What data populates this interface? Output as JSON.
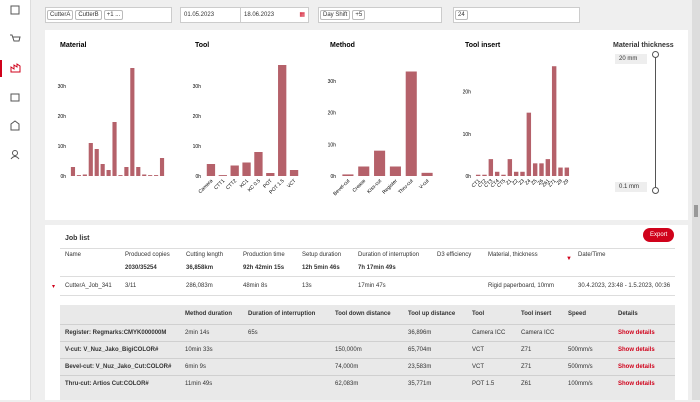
{
  "filters": {
    "machines": [
      "CutterA",
      "CutterB",
      "+1 ..."
    ],
    "date_from": "01.05.2023",
    "date_to": "18.06.2023",
    "shifts": [
      "Day Shift",
      "+5"
    ],
    "hours": [
      "24"
    ]
  },
  "chart_data": [
    {
      "type": "bar",
      "title": "Material",
      "color": "#b5616a",
      "categories": [
        null,
        null,
        null,
        null,
        null,
        null,
        null,
        null,
        null,
        null,
        null,
        null,
        null,
        null,
        null,
        null
      ],
      "values": [
        3,
        0.3,
        0.5,
        11,
        9,
        4,
        2,
        18,
        0.3,
        3,
        36,
        3,
        0.5,
        0.3,
        0.3,
        6
      ],
      "ylim": [
        0,
        38
      ],
      "yticks": [
        {
          "value": 0,
          "label": "0h"
        },
        {
          "value": 10,
          "label": "10h"
        },
        {
          "value": 20,
          "label": "20h"
        },
        {
          "value": 30,
          "label": "30h"
        }
      ]
    },
    {
      "type": "bar",
      "title": "Tool",
      "color": "#b5616a",
      "categories": [
        "Camera",
        "CTT1",
        "CTT2",
        "KC1",
        "KC 0.5",
        "POT",
        "POT 1.5",
        "VCT"
      ],
      "values": [
        4,
        0.3,
        3.5,
        4.5,
        8,
        1,
        37,
        2
      ],
      "ylim": [
        0,
        38
      ],
      "yticks": [
        {
          "value": 0,
          "label": "0h"
        },
        {
          "value": 10,
          "label": "10h"
        },
        {
          "value": 20,
          "label": "20h"
        },
        {
          "value": 30,
          "label": "30h"
        }
      ]
    },
    {
      "type": "bar",
      "title": "Method",
      "color": "#b5616a",
      "categories": [
        "Bevel-cut",
        "Crease",
        "Kiss-cut",
        "Register",
        "Thru-cut",
        "V-cut"
      ],
      "values": [
        0.5,
        3,
        8,
        3,
        33,
        1
      ],
      "ylim": [
        0,
        36
      ],
      "yticks": [
        {
          "value": 0,
          "label": "0h"
        },
        {
          "value": 10,
          "label": "10h"
        },
        {
          "value": 20,
          "label": "20h"
        },
        {
          "value": 30,
          "label": "30h"
        }
      ]
    },
    {
      "type": "bar",
      "title": "Tool insert",
      "color": "#b5616a",
      "categories": [
        "CT1",
        "CT2",
        "CT3",
        "CT4",
        "CT5",
        "Z1",
        "Z2",
        "Z3",
        "Z4",
        "Z5",
        "Z6",
        "Z61",
        "Z71",
        "Z8",
        "Z9"
      ],
      "values": [
        0.3,
        0.3,
        4,
        1,
        0.3,
        4,
        1,
        1,
        15,
        3,
        3,
        4,
        26,
        2,
        2
      ],
      "ylim": [
        0,
        27
      ],
      "yticks": [
        {
          "value": 0,
          "label": "0h"
        },
        {
          "value": 10,
          "label": "10h"
        },
        {
          "value": 20,
          "label": "20h"
        }
      ]
    }
  ],
  "slider": {
    "title": "Material thickness",
    "max_label": "20 mm",
    "min_label": "0.1 mm"
  },
  "job_list": {
    "title": "Job list",
    "export": "Export",
    "columns": [
      "Name",
      "Produced copies",
      "Cutting length",
      "Production time",
      "Setup duration",
      "Duration of interruption",
      "D3 efficiency",
      "Material, thickness",
      "Date/Time"
    ],
    "summary": [
      "2030/35254",
      "36,858km",
      "92h 42min 15s",
      "12h 5min 46s",
      "7h 17min 49s"
    ],
    "rows": [
      [
        "CutterA_Job_341",
        "3/11",
        "286,083m",
        "48min 8s",
        "13s",
        "17min 47s",
        "Rigid paperboard, 10mm",
        "30.4.2023, 23:48 - 1.5.2023, 00:36"
      ]
    ]
  },
  "detail": {
    "columns": [
      "Method duration",
      "Duration of interruption",
      "Tool down distance",
      "Tool up distance",
      "Tool",
      "Tool insert",
      "Speed",
      "Details"
    ],
    "rows": [
      [
        "Register: Regmarks:CMYK000000M",
        "2min 14s",
        "65s",
        null,
        "36,896m",
        "Camera ICC",
        "Camera ICC",
        null,
        "Show details"
      ],
      [
        "V-cut: V_Nuz_Jako_BigiCOLOR#",
        "10min 33s",
        null,
        "150,000m",
        "65,704m",
        "VCT",
        "Z71",
        "500mm/s",
        "Show details"
      ],
      [
        "Bevel-cut: V_Nuz_Jako_Cut:COLOR#",
        "6min 9s",
        null,
        "74,000m",
        "23,583m",
        "VCT",
        "Z71",
        "500mm/s",
        "Show details"
      ],
      [
        "Thru-cut: Artios Cut:COLOR#",
        "11min 49s",
        null,
        "62,083m",
        "35,771m",
        "POT 1.5",
        "Z61",
        "100mm/s",
        "Show details"
      ]
    ]
  }
}
